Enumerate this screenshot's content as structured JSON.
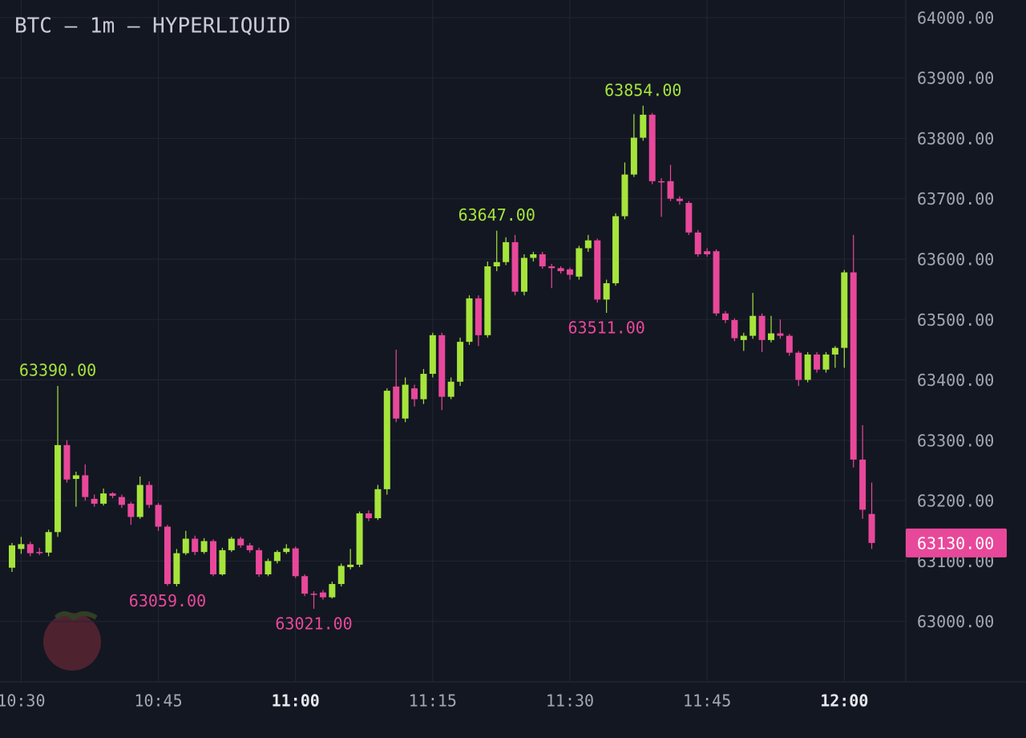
{
  "chart_data": {
    "type": "candlestick",
    "title": "BTC — 1m — HYPERLIQUID",
    "x": [
      "10:29",
      "10:30",
      "10:31",
      "10:32",
      "10:33",
      "10:34",
      "10:35",
      "10:36",
      "10:37",
      "10:38",
      "10:39",
      "10:40",
      "10:41",
      "10:42",
      "10:43",
      "10:44",
      "10:45",
      "10:46",
      "10:47",
      "10:48",
      "10:49",
      "10:50",
      "10:51",
      "10:52",
      "10:53",
      "10:54",
      "10:55",
      "10:56",
      "10:57",
      "10:58",
      "10:59",
      "11:00",
      "11:01",
      "11:02",
      "11:03",
      "11:04",
      "11:05",
      "11:06",
      "11:07",
      "11:08",
      "11:09",
      "11:10",
      "11:11",
      "11:12",
      "11:13",
      "11:14",
      "11:15",
      "11:16",
      "11:17",
      "11:18",
      "11:19",
      "11:20",
      "11:21",
      "11:22",
      "11:23",
      "11:24",
      "11:25",
      "11:26",
      "11:27",
      "11:28",
      "11:29",
      "11:30",
      "11:31",
      "11:32",
      "11:33",
      "11:34",
      "11:35",
      "11:36",
      "11:37",
      "11:38",
      "11:39",
      "11:40",
      "11:41",
      "11:42",
      "11:43",
      "11:44",
      "11:45",
      "11:46",
      "11:47",
      "11:48",
      "11:49",
      "11:50",
      "11:51",
      "11:52",
      "11:53",
      "11:54",
      "11:55",
      "11:56",
      "11:57",
      "11:58",
      "11:59",
      "12:00",
      "12:01",
      "12:02",
      "12:03"
    ],
    "open": [
      63089,
      63120,
      63128,
      63115,
      63114,
      63148,
      63292,
      63236,
      63242,
      63203,
      63195,
      63212,
      63206,
      63195,
      63173,
      63226,
      63193,
      63157,
      63062,
      63113,
      63137,
      63115,
      63133,
      63078,
      63118,
      63137,
      63126,
      63118,
      63078,
      63100,
      63115,
      63121,
      63075,
      63046,
      63048,
      63040,
      63062,
      63090,
      63094,
      63179,
      63171,
      63219,
      63389,
      63336,
      63386,
      63368,
      63410,
      63474,
      63372,
      63397,
      63463,
      63535,
      63474,
      63588,
      63595,
      63628,
      63546,
      63602,
      63608,
      63588,
      63585,
      63583,
      63571,
      63618,
      63631,
      63533,
      63560,
      63671,
      63740,
      63801,
      63839,
      63729,
      63729,
      63700,
      63693,
      63644,
      63613,
      63613,
      63510,
      63499,
      63466,
      63473,
      63506,
      63466,
      63477,
      63473,
      63445,
      63400,
      63442,
      63417,
      63442,
      63453,
      63578,
      63268,
      63178
    ],
    "high": [
      63130,
      63140,
      63132,
      63122,
      63152,
      63390,
      63300,
      63248,
      63260,
      63210,
      63220,
      63214,
      63210,
      63198,
      63240,
      63232,
      63196,
      63160,
      63120,
      63150,
      63142,
      63138,
      63136,
      63122,
      63140,
      63140,
      63130,
      63122,
      63104,
      63118,
      63128,
      63124,
      63078,
      63050,
      63052,
      63066,
      63096,
      63120,
      63182,
      63184,
      63226,
      63386,
      63450,
      63404,
      63392,
      63418,
      63478,
      63478,
      63404,
      63470,
      63540,
      63540,
      63596,
      63647,
      63636,
      63640,
      63608,
      63612,
      63612,
      63592,
      63588,
      63586,
      63622,
      63640,
      63634,
      63566,
      63676,
      63760,
      63840,
      63854,
      63842,
      63734,
      63756,
      63704,
      63696,
      63648,
      63618,
      63616,
      63514,
      63502,
      63478,
      63544,
      63510,
      63506,
      63500,
      63476,
      63448,
      63446,
      63446,
      63446,
      63456,
      63582,
      63640,
      63325,
      63230
    ],
    "low": [
      63082,
      63112,
      63108,
      63110,
      63108,
      63140,
      63230,
      63190,
      63200,
      63190,
      63192,
      63204,
      63188,
      63160,
      63170,
      63188,
      63150,
      63059,
      63058,
      63110,
      63110,
      63112,
      63075,
      63076,
      63115,
      63122,
      63114,
      63074,
      63075,
      63096,
      63112,
      63072,
      63042,
      63021,
      63036,
      63038,
      63058,
      63086,
      63090,
      63166,
      63168,
      63210,
      63330,
      63330,
      63356,
      63360,
      63404,
      63350,
      63368,
      63390,
      63458,
      63456,
      63470,
      63580,
      63590,
      63540,
      63540,
      63596,
      63584,
      63552,
      63576,
      63566,
      63566,
      63612,
      63528,
      63511,
      63556,
      63666,
      63736,
      63796,
      63724,
      63670,
      63696,
      63690,
      63640,
      63604,
      63604,
      63506,
      63494,
      63464,
      63448,
      63468,
      63446,
      63462,
      63468,
      63440,
      63390,
      63396,
      63412,
      63412,
      63420,
      63420,
      63255,
      63170,
      63120
    ],
    "close": [
      63126,
      63128,
      63113,
      63114,
      63148,
      63292,
      63235,
      63242,
      63206,
      63195,
      63212,
      63208,
      63193,
      63173,
      63226,
      63193,
      63157,
      63062,
      63113,
      63137,
      63115,
      63133,
      63078,
      63118,
      63137,
      63126,
      63118,
      63078,
      63100,
      63115,
      63121,
      63075,
      63046,
      63044,
      63040,
      63062,
      63092,
      63094,
      63179,
      63171,
      63219,
      63382,
      63336,
      63392,
      63368,
      63410,
      63474,
      63372,
      63397,
      63463,
      63535,
      63474,
      63588,
      63595,
      63628,
      63546,
      63602,
      63608,
      63588,
      63585,
      63580,
      63574,
      63618,
      63631,
      63533,
      63560,
      63671,
      63740,
      63801,
      63839,
      63729,
      63727,
      63700,
      63696,
      63644,
      63608,
      63608,
      63510,
      63499,
      63469,
      63473,
      63506,
      63466,
      63477,
      63473,
      63445,
      63400,
      63442,
      63417,
      63442,
      63453,
      63578,
      63268,
      63185,
      63130
    ],
    "up_color": "#a6e43c",
    "down_color": "#e8489a",
    "xticks": [
      "10:30",
      "10:45",
      "11:00",
      "11:15",
      "11:30",
      "11:45",
      "12:00"
    ],
    "ylim": [
      62900,
      64029
    ],
    "yticks": [
      {
        "value": 63000,
        "label": "63000.00"
      },
      {
        "value": 63100,
        "label": "63100.00"
      },
      {
        "value": 63200,
        "label": "63200.00"
      },
      {
        "value": 63300,
        "label": "63300.00"
      },
      {
        "value": 63400,
        "label": "63400.00"
      },
      {
        "value": 63500,
        "label": "63500.00"
      },
      {
        "value": 63600,
        "label": "63600.00"
      },
      {
        "value": 63700,
        "label": "63700.00"
      },
      {
        "value": 63800,
        "label": "63800.00"
      },
      {
        "value": 63900,
        "label": "63900.00"
      },
      {
        "value": 64000,
        "label": "64000.00"
      }
    ],
    "grid": true,
    "annotations": [
      {
        "at": "10:34",
        "value": 63390,
        "label": "63390.00",
        "position": "above",
        "color": "#a6e43c"
      },
      {
        "at": "10:46",
        "value": 63059,
        "label": "63059.00",
        "position": "below",
        "color": "#e8489a"
      },
      {
        "at": "11:02",
        "value": 63021,
        "label": "63021.00",
        "position": "below",
        "color": "#e8489a"
      },
      {
        "at": "11:22",
        "value": 63647,
        "label": "63647.00",
        "position": "above",
        "color": "#a6e43c"
      },
      {
        "at": "11:34",
        "value": 63511,
        "label": "63511.00",
        "position": "below",
        "color": "#e8489a"
      },
      {
        "at": "11:38",
        "value": 63854,
        "label": "63854.00",
        "position": "above",
        "color": "#a6e43c"
      }
    ],
    "last_price": {
      "value": 63130,
      "label": "63130.00",
      "color": "#e8489a"
    }
  }
}
